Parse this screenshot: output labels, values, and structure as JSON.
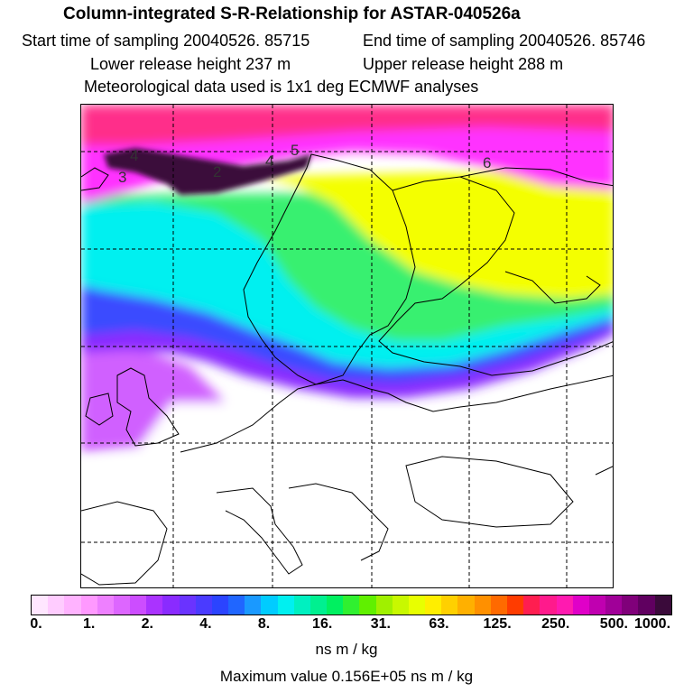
{
  "header": {
    "title": "Column-integrated S-R-Relationship for ASTAR-040526a",
    "start_time": "Start time of sampling 20040526. 85715",
    "end_time": "End time of sampling 20040526. 85746",
    "lower_height": "Lower release height  237 m",
    "upper_height": "Upper release height  288 m",
    "met_data": "Meteorological data used is 1x1 deg ECMWF analyses"
  },
  "map": {
    "trajectory_labels": [
      "4",
      "3",
      "2",
      "4",
      "5",
      "6"
    ],
    "plume_colors": {
      "top": "#ff2f8a",
      "magenta": "#ff33ff",
      "yellow": "#f4ff00",
      "green": "#38f070",
      "cyan": "#00f0f0",
      "blue": "#3b4bff",
      "violet": "#8a2bff",
      "lilac": "#d060ff",
      "max": "#3a0a3a"
    }
  },
  "colorbar": {
    "colors": [
      "#ffe6ff",
      "#ffccff",
      "#ffb3ff",
      "#ff99ff",
      "#ee80ff",
      "#dd66ff",
      "#cc4dff",
      "#aa33ff",
      "#8a2bff",
      "#6a33ff",
      "#4a3bff",
      "#2b44ff",
      "#2066ff",
      "#1a99ff",
      "#00ccff",
      "#00f0f0",
      "#00f0c0",
      "#00f090",
      "#00f060",
      "#30f030",
      "#60f000",
      "#a0f000",
      "#c8f800",
      "#e8ff00",
      "#ffee00",
      "#ffd000",
      "#ffb000",
      "#ff9000",
      "#ff6a00",
      "#ff3c00",
      "#ff1e50",
      "#ff1a8c",
      "#ff1ab0",
      "#e000c8",
      "#c000b0",
      "#a00098",
      "#80007a",
      "#600060",
      "#3a0a3a"
    ],
    "tick_labels": [
      "0.",
      "1.",
      "2.",
      "4.",
      "8.",
      "16.",
      "31.",
      "63.",
      "125.",
      "250.",
      "500.",
      "1000."
    ],
    "units": "ns m / kg",
    "max_value": "Maximum value  0.156E+05 ns m / kg"
  }
}
